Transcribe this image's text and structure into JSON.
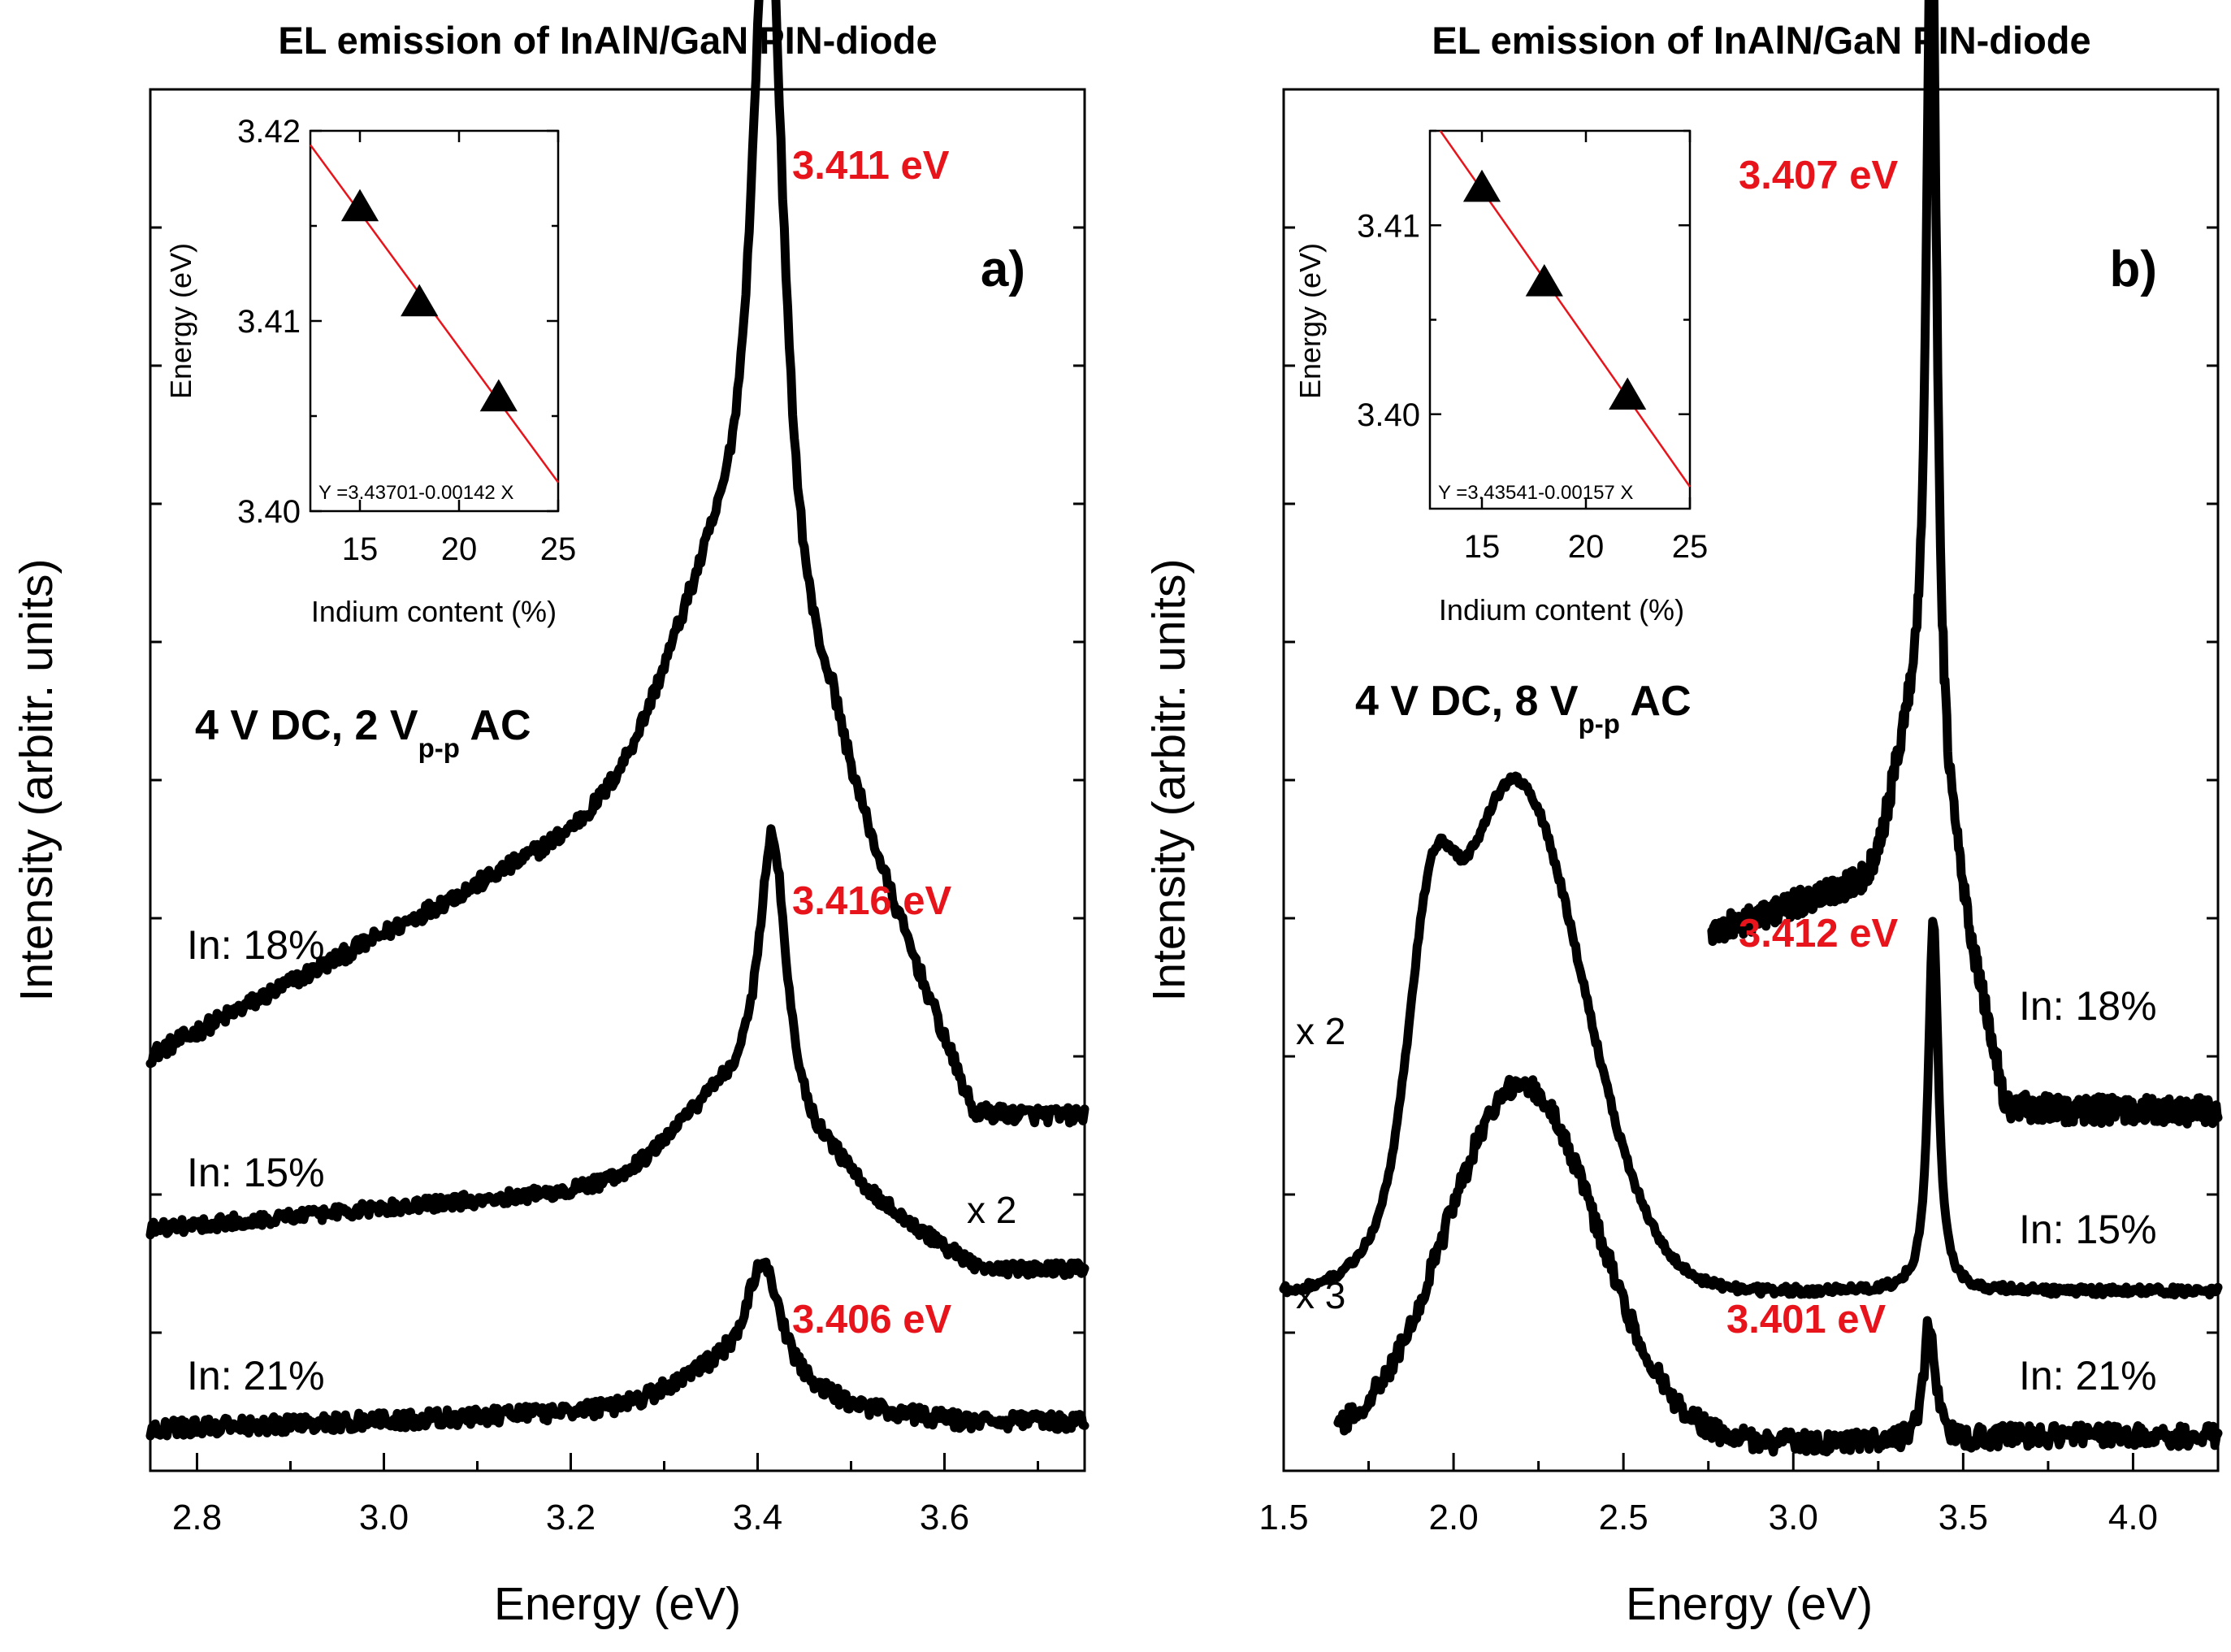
{
  "figure_title": "EL emission of InAlN/GaN PIN-diode",
  "chart_data": [
    {
      "id": "a",
      "type": "line",
      "panel_label": "a)",
      "title": "EL emission of InAlN/GaN PIN-diode",
      "xlabel": "Energy (eV)",
      "ylabel": "Intensity (arbitr. units)",
      "xlim": [
        2.75,
        3.75
      ],
      "ylim": [
        0,
        10
      ],
      "xticks": [
        "2.8",
        "3.0",
        "3.2",
        "3.4",
        "3.6"
      ],
      "xtick_values": [
        2.8,
        3.0,
        3.2,
        3.4,
        3.6
      ],
      "condition": {
        "main": "4 V DC, 2 V",
        "sub": "p-p",
        "suffix": " AC"
      },
      "series": [
        {
          "name": "In: 18%",
          "x_range": [
            2.75,
            3.75
          ],
          "base": 3.0,
          "base_slope": 2.1,
          "peak_x": 3.411,
          "peak_amp": 5.7,
          "peak_width": 0.02,
          "shoulder_x": 3.36,
          "shoulder_amp": 1.2,
          "tail": 2.55,
          "noise": 0.06
        },
        {
          "name": "In: 15%",
          "x_range": [
            2.75,
            3.75
          ],
          "base": 1.75,
          "base_slope": 0.35,
          "peak_x": 3.416,
          "peak_amp": 2.1,
          "peak_width": 0.018,
          "shoulder_x": 3.37,
          "shoulder_amp": 0.55,
          "tail": 1.45,
          "noise": 0.05,
          "scale_label": "x 2"
        },
        {
          "name": "In: 21%",
          "x_range": [
            2.75,
            3.75
          ],
          "base": 0.3,
          "base_slope": 0.15,
          "peak_x": 3.406,
          "peak_amp": 0.85,
          "peak_width": 0.022,
          "shoulder_x": 3.37,
          "shoulder_amp": 0.25,
          "tail": 0.35,
          "noise": 0.06
        }
      ],
      "peak_labels": [
        "3.411 eV",
        "3.416 eV",
        "3.406 eV"
      ],
      "inset": {
        "xlabel": "Indium content (%)",
        "ylabel": "Energy (eV)",
        "xlim": [
          12.5,
          25
        ],
        "ylim": [
          3.4,
          3.42
        ],
        "xticks": [
          "15",
          "20",
          "25"
        ],
        "xtick_values": [
          15,
          20,
          25
        ],
        "yticks": [
          "3.40",
          "3.41",
          "3.42"
        ],
        "ytick_values": [
          3.4,
          3.41,
          3.42
        ],
        "points": [
          {
            "x": 15,
            "y": 3.416
          },
          {
            "x": 18,
            "y": 3.411
          },
          {
            "x": 22,
            "y": 3.406
          }
        ],
        "fit": {
          "intercept": 3.43701,
          "slope": -0.00142
        },
        "equation": "Y =3.43701-0.00142 X"
      }
    },
    {
      "id": "b",
      "type": "line",
      "panel_label": "b)",
      "title": "EL emission of InAlN/GaN PIN-diode",
      "xlabel": "Energy (eV)",
      "ylabel": "Intensity (arbitr. units)",
      "xlim": [
        1.5,
        4.25
      ],
      "ylim": [
        0,
        10
      ],
      "xticks": [
        "1.5",
        "2.0",
        "2.5",
        "3.0",
        "3.5",
        "4.0"
      ],
      "xtick_values": [
        1.5,
        2.0,
        2.5,
        3.0,
        3.5,
        4.0
      ],
      "condition": {
        "main": "4 V DC, 8 V",
        "sub": "p-p",
        "suffix": " AC"
      },
      "series": [
        {
          "name": "In: 18%",
          "x_range": [
            2.76,
            4.25
          ],
          "base": 2.9,
          "base_slope": 1.3,
          "peak_x": 3.407,
          "peak_amp": 6.8,
          "peak_width": 0.018,
          "shoulder_x": 3.35,
          "shoulder_amp": 1.0,
          "tail": 2.6,
          "noise": 0.1
        },
        {
          "name": "In: 15%",
          "x_range": [
            1.5,
            4.25
          ],
          "base": 1.3,
          "peak_x": 3.412,
          "peak_amp": 2.7,
          "peak_width": 0.018,
          "band_amp": 3.7,
          "band_x": 2.18,
          "band_w": 0.2,
          "shoulder_x": 1.93,
          "shoulder_amp": 1.4,
          "tail": 1.3,
          "noise": 0.03,
          "scale_label": "x 2"
        },
        {
          "name": "In: 21%",
          "x_range": [
            1.66,
            4.25
          ],
          "base": 0.2,
          "peak_x": 3.401,
          "peak_amp": 0.9,
          "peak_width": 0.02,
          "band_amp": 2.6,
          "band_x": 2.2,
          "band_w": 0.22,
          "tail": 0.25,
          "noise": 0.08,
          "scale_label": "x 3"
        }
      ],
      "peak_labels": [
        "3.407 eV",
        "3.412 eV",
        "3.401 eV"
      ],
      "inset": {
        "xlabel": "Indium content (%)",
        "ylabel": "Energy (eV)",
        "xlim": [
          12.5,
          25
        ],
        "ylim": [
          3.395,
          3.415
        ],
        "xticks": [
          "15",
          "20",
          "25"
        ],
        "xtick_values": [
          15,
          20,
          25
        ],
        "yticks": [
          "3.40",
          "3.41"
        ],
        "ytick_values": [
          3.4,
          3.41
        ],
        "points": [
          {
            "x": 15,
            "y": 3.412
          },
          {
            "x": 18,
            "y": 3.407
          },
          {
            "x": 22,
            "y": 3.401
          }
        ],
        "fit": {
          "intercept": 3.43541,
          "slope": -0.00157
        },
        "equation": "Y =3.43541-0.00157 X"
      }
    }
  ]
}
